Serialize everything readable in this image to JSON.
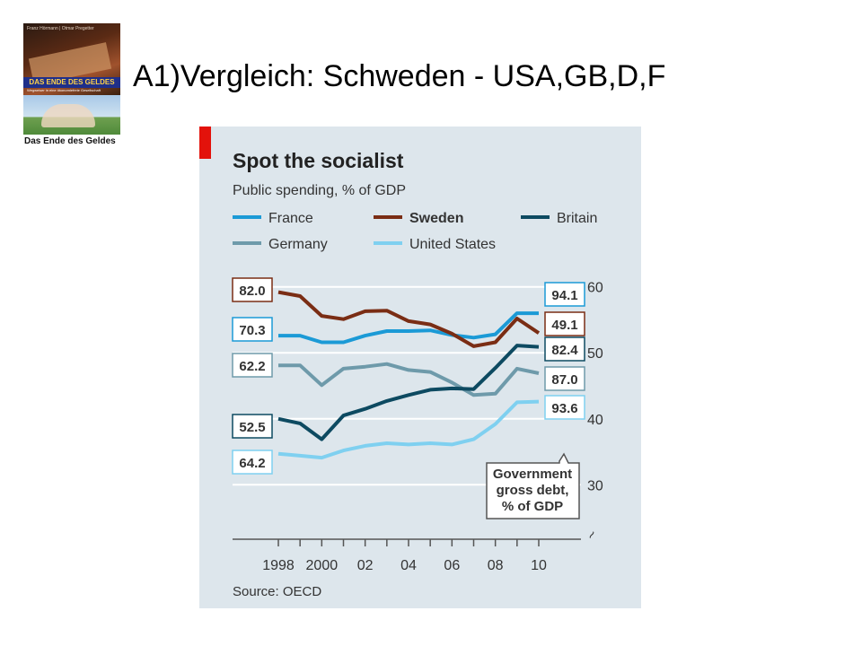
{
  "slide": {
    "title": "A1)Vergleich: Schweden - USA,GB,D,F"
  },
  "book_cover": {
    "authors": "Franz Hörmann | Otmar Pregetter",
    "banner": "DAS ENDE DES GELDES",
    "subtitle": "Wegweiser in eine ökonomiefreie Gesellschaft",
    "caption": "Das Ende des Geldes"
  },
  "colors": {
    "panel_bg": "#dde6ec",
    "accent_red": "#e3120b",
    "France": "#1b9ad6",
    "Sweden": "#7a2d14",
    "Britain": "#0d4a61",
    "Germany": "#6e9aaa",
    "United States": "#7fd0f0"
  },
  "chart_data": {
    "type": "line",
    "title": "Spot the socialist",
    "subtitle": "Public spending, % of GDP",
    "source": "Source: OECD",
    "x": [
      1998,
      1999,
      2000,
      2001,
      2002,
      2003,
      2004,
      2005,
      2006,
      2007,
      2008,
      2009,
      2010
    ],
    "xticks": [
      1998,
      2000,
      2002,
      2004,
      2006,
      2008,
      2010
    ],
    "xtick_labels": [
      "1998",
      "2000",
      "02",
      "04",
      "06",
      "08",
      "10"
    ],
    "ylim": [
      28,
      62
    ],
    "yticks": [
      30,
      40,
      50,
      60
    ],
    "axis_break": "~",
    "grid": true,
    "legend": [
      "France",
      "Sweden",
      "Britain",
      "Germany",
      "United States"
    ],
    "series": [
      {
        "name": "France",
        "values": [
          52.6,
          52.6,
          51.6,
          51.6,
          52.6,
          53.3,
          53.3,
          53.4,
          52.7,
          52.3,
          52.8,
          56.0,
          56.0
        ],
        "start_label": "70.3",
        "end_label": "94.1"
      },
      {
        "name": "Sweden",
        "values": [
          59.2,
          58.6,
          55.6,
          55.1,
          56.3,
          56.4,
          54.8,
          54.3,
          52.9,
          51.0,
          51.6,
          55.2,
          53.0
        ],
        "start_label": "82.0",
        "end_label": "49.1"
      },
      {
        "name": "Britain",
        "values": [
          40.0,
          39.3,
          36.9,
          40.5,
          41.5,
          42.7,
          43.6,
          44.4,
          44.6,
          44.5,
          47.7,
          51.1,
          50.9
        ],
        "start_label": "52.5",
        "end_label": "82.4"
      },
      {
        "name": "Germany",
        "values": [
          48.1,
          48.1,
          45.1,
          47.6,
          47.9,
          48.3,
          47.4,
          47.1,
          45.5,
          43.6,
          43.8,
          47.6,
          46.9
        ],
        "start_label": "62.2",
        "end_label": "87.0"
      },
      {
        "name": "United States",
        "values": [
          34.7,
          34.4,
          34.1,
          35.2,
          35.9,
          36.3,
          36.1,
          36.3,
          36.1,
          36.9,
          39.2,
          42.5,
          42.6
        ],
        "start_label": "64.2",
        "end_label": "93.6"
      }
    ],
    "annotation": [
      "Government",
      "gross debt,",
      "% of GDP"
    ]
  }
}
